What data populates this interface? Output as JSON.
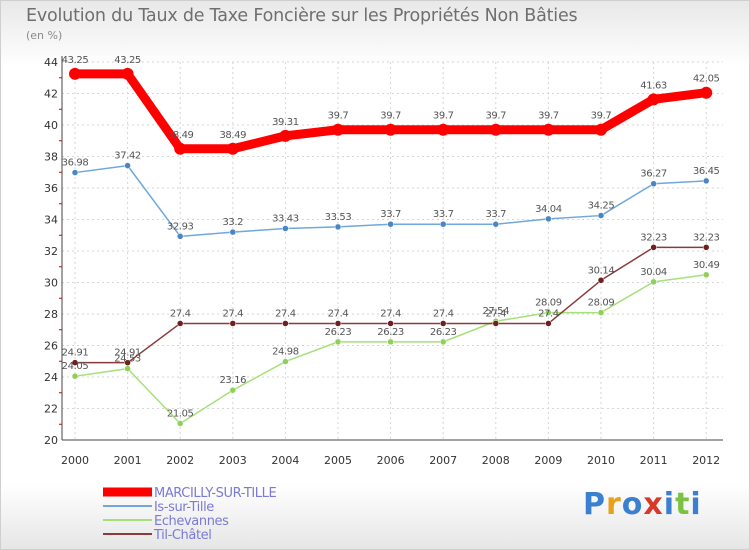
{
  "title": "Evolution du Taux de Taxe Foncière sur les Propriétés Non Bâties",
  "unit_label": "(en %)",
  "logo": {
    "text": "Proxiti",
    "colors": [
      "#3a7fd0",
      "#e8a21a",
      "#3a7fd0",
      "#d83a2a",
      "#3a7fd0",
      "#7cc242",
      "#3a7fd0"
    ]
  },
  "chart_data": {
    "type": "line",
    "title": "Evolution du Taux de Taxe Foncière sur les Propriétés Non Bâties",
    "ylabel": "(en %)",
    "xlabel": "",
    "x": [
      "2000",
      "2001",
      "2002",
      "2003",
      "2004",
      "2005",
      "2006",
      "2007",
      "2008",
      "2009",
      "2010",
      "2011",
      "2012"
    ],
    "ylim": [
      20,
      44
    ],
    "yticks": [
      "20",
      "22",
      "24",
      "26",
      "28",
      "30",
      "32",
      "34",
      "36",
      "38",
      "40",
      "42",
      "44"
    ],
    "grid": true,
    "legend_position": "bottom-left",
    "series": [
      {
        "name": "MARCILLY-SUR-TILLE",
        "color": "#ff0000",
        "marker_color": "#ff0000",
        "thick": true,
        "values": [
          43.25,
          43.25,
          38.49,
          38.49,
          39.31,
          39.7,
          39.7,
          39.7,
          39.7,
          39.7,
          39.7,
          41.63,
          42.05
        ],
        "labels": [
          "43.25",
          "43.25",
          "38.49",
          "38.49",
          "39.31",
          "39.7",
          "39.7",
          "39.7",
          "39.7",
          "39.7",
          "39.7",
          "41.63",
          "42.05"
        ]
      },
      {
        "name": "Is-sur-Tille",
        "color": "#6fa8dc",
        "marker_color": "#4a86c5",
        "thick": false,
        "values": [
          36.98,
          37.42,
          32.93,
          33.2,
          33.43,
          33.53,
          33.7,
          33.7,
          33.7,
          34.04,
          34.25,
          36.27,
          36.45
        ],
        "labels": [
          "36.98",
          "37.42",
          "32.93",
          "33.2",
          "33.43",
          "33.53",
          "33.7",
          "33.7",
          "33.7",
          "34.04",
          "34.25",
          "36.27",
          "36.45"
        ]
      },
      {
        "name": "Echevannes",
        "color": "#a6e07a",
        "marker_color": "#8ed05a",
        "thick": false,
        "values": [
          24.05,
          24.53,
          21.05,
          23.16,
          24.98,
          26.23,
          26.23,
          26.23,
          27.54,
          28.09,
          28.09,
          30.04,
          30.49
        ],
        "labels": [
          "24.05",
          "24.53",
          "21.05",
          "23.16",
          "24.98",
          "26.23",
          "26.23",
          "26.23",
          "27.54",
          "28.09",
          "28.09",
          "30.04",
          "30.49"
        ]
      },
      {
        "name": "Til-Châtel",
        "color": "#8b3a3a",
        "marker_color": "#6e1f1f",
        "thick": false,
        "values": [
          24.91,
          24.91,
          27.4,
          27.4,
          27.4,
          27.4,
          27.4,
          27.4,
          27.4,
          27.4,
          30.14,
          32.23,
          32.23
        ],
        "labels": [
          "24.91",
          "24.91",
          "27.4",
          "27.4",
          "27.4",
          "27.4",
          "27.4",
          "27.4",
          "27.4",
          "27.4",
          "30.14",
          "32.23",
          "32.23"
        ]
      }
    ]
  }
}
